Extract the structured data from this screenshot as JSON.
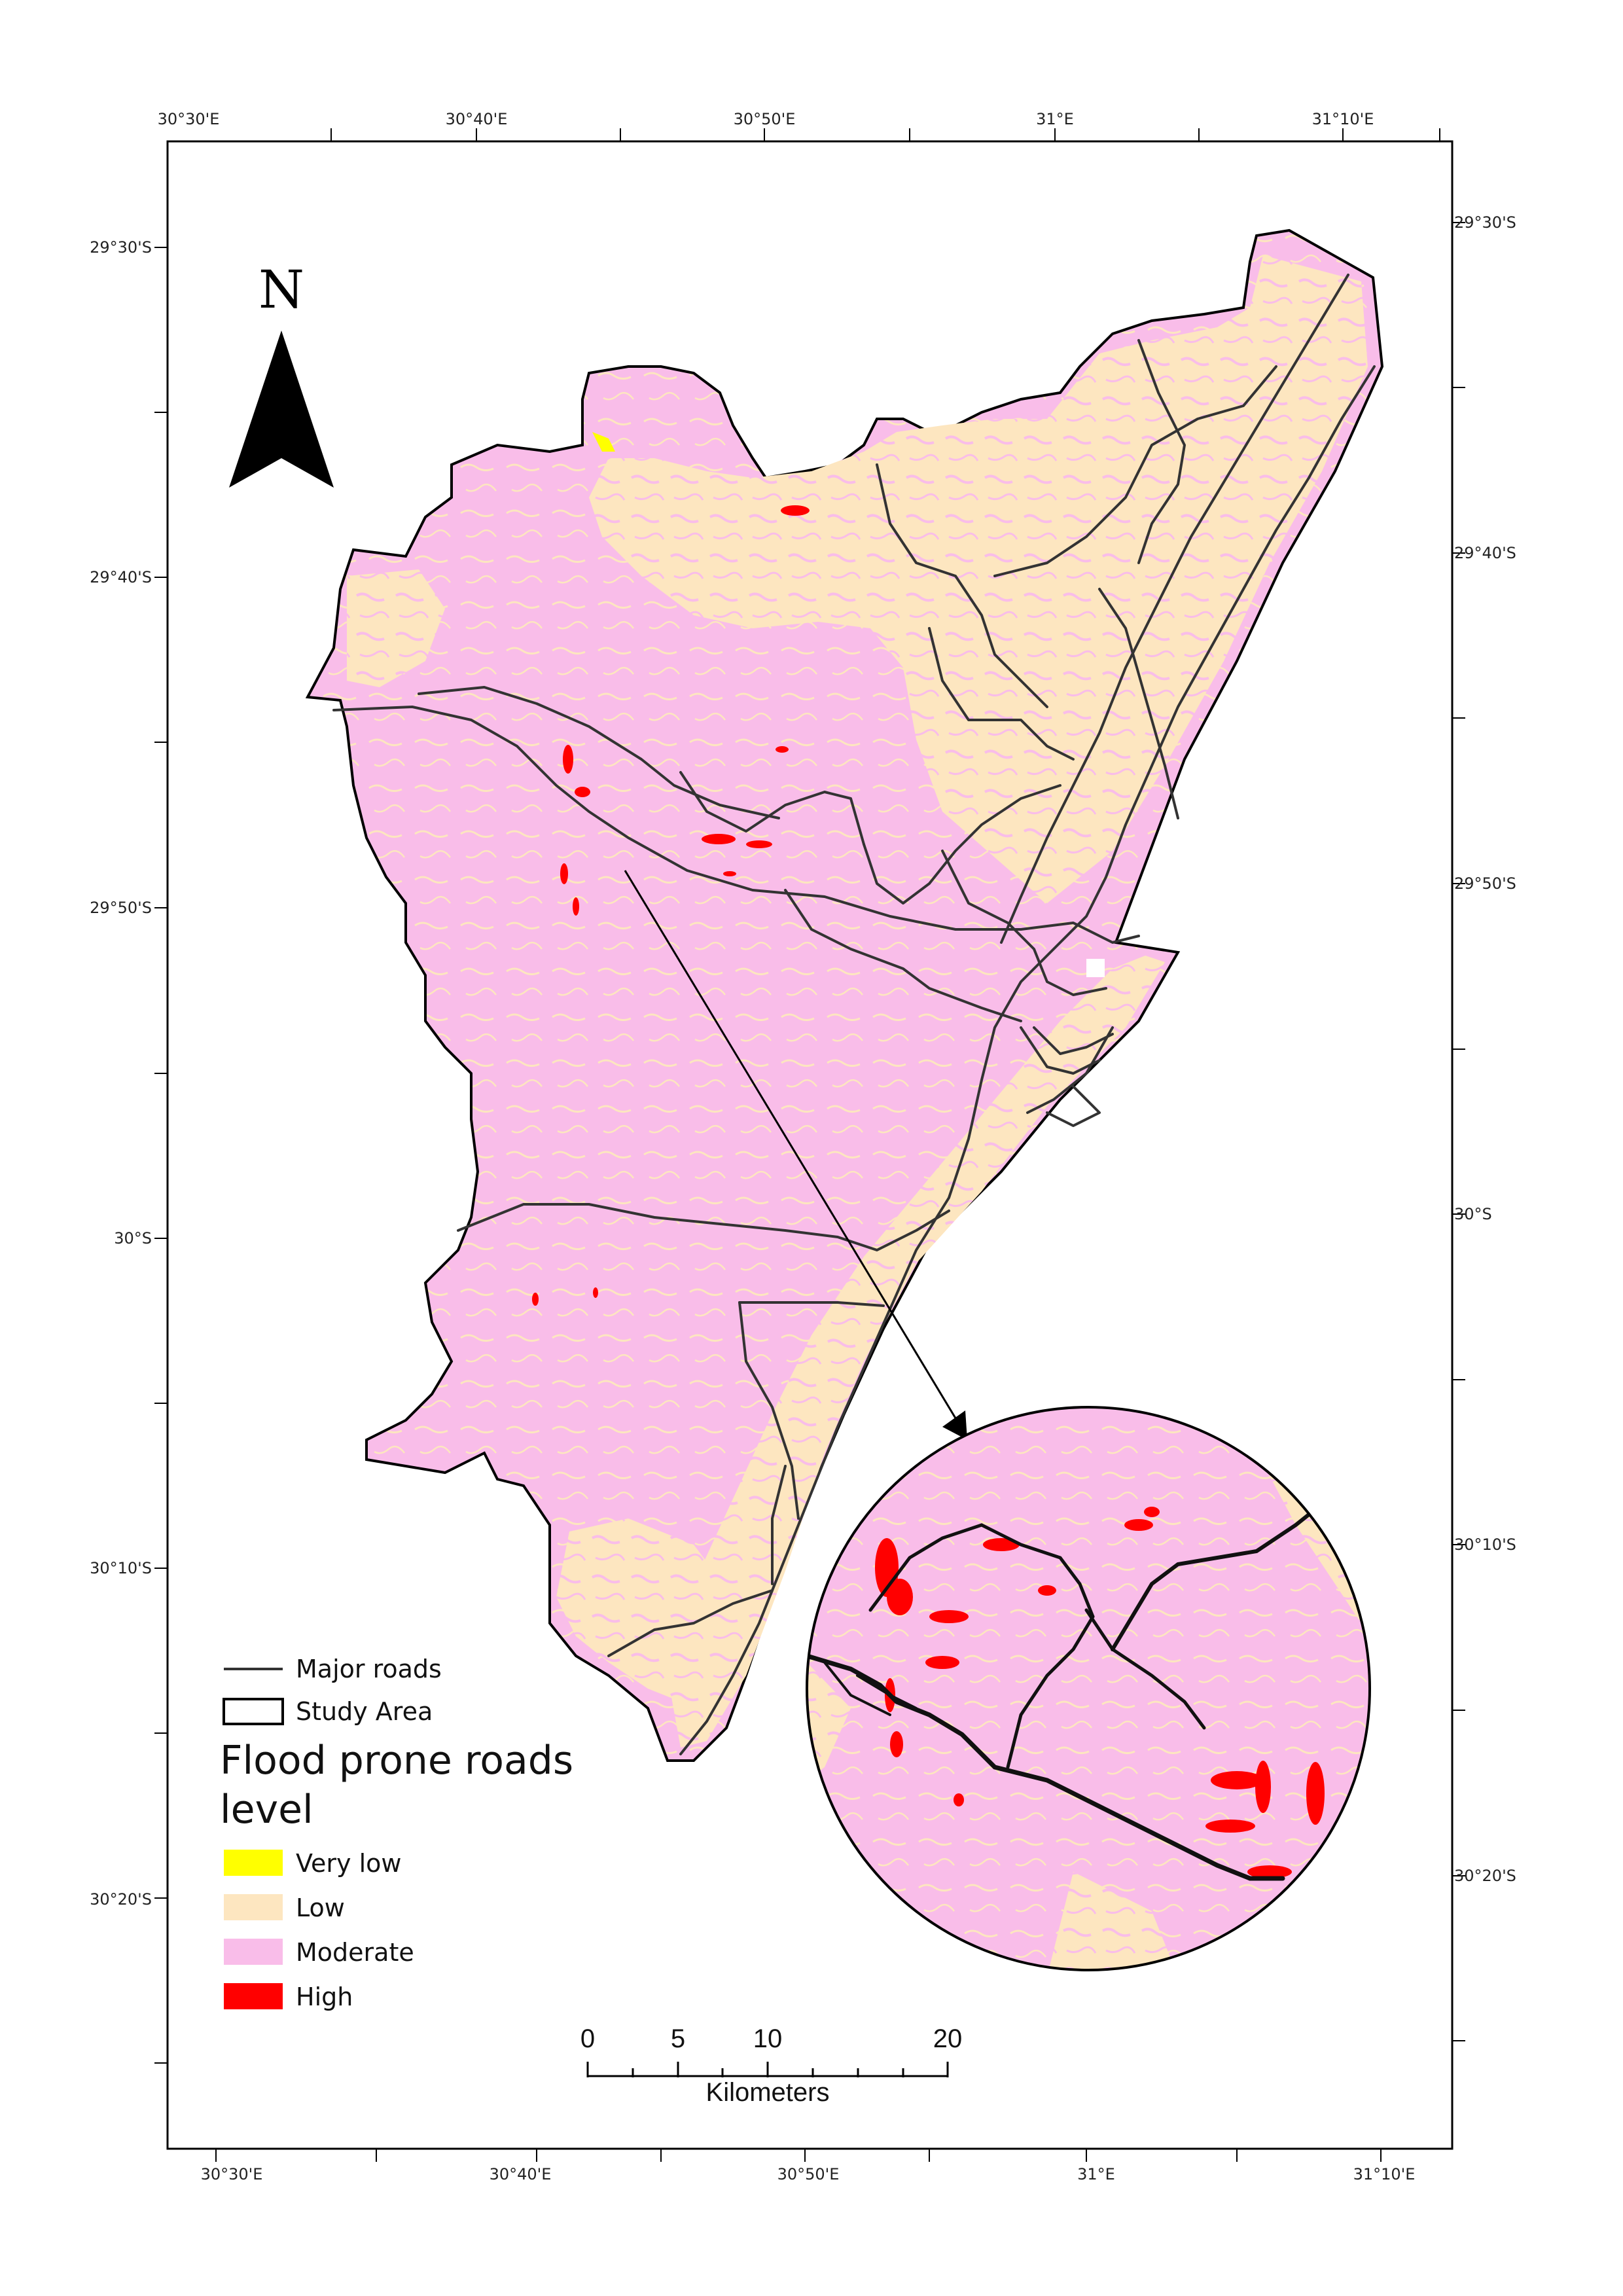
{
  "axes": {
    "top_labels": [
      "30°30'E",
      "30°40'E",
      "30°50'E",
      "31°E",
      "31°10'E"
    ],
    "bottom_labels": [
      "30°30'E",
      "30°40'E",
      "30°50'E",
      "31°E",
      "31°10'E"
    ],
    "left_labels": [
      "29°30'S",
      "29°40'S",
      "29°50'S",
      "30°S",
      "30°10'S",
      "30°20'S"
    ],
    "right_labels": [
      "29°30'S",
      "29°40'S",
      "29°50'S",
      "30°S",
      "30°10'S",
      "30°20'S"
    ]
  },
  "north_arrow": {
    "letter": "N",
    "icon": "north-arrow-icon"
  },
  "legend": {
    "roads_label": "Major roads",
    "study_area_label": "Study Area",
    "title": "Flood prone roads level",
    "title_line1": "Flood prone roads",
    "title_line2": "level",
    "classes": [
      {
        "label": "Very low",
        "color": "#ffff00"
      },
      {
        "label": "Low",
        "color": "#fde6c0"
      },
      {
        "label": "Moderate",
        "color": "#f9bde9"
      },
      {
        "label": "High",
        "color": "#ff0000"
      }
    ]
  },
  "scale_bar": {
    "ticks": [
      "0",
      "5",
      "10",
      "20"
    ],
    "unit": "Kilometers"
  },
  "colors": {
    "low": "#fde6c0",
    "moderate": "#f9bde9",
    "high": "#ff0000",
    "very_low": "#ffff00",
    "roads": "#333333"
  }
}
